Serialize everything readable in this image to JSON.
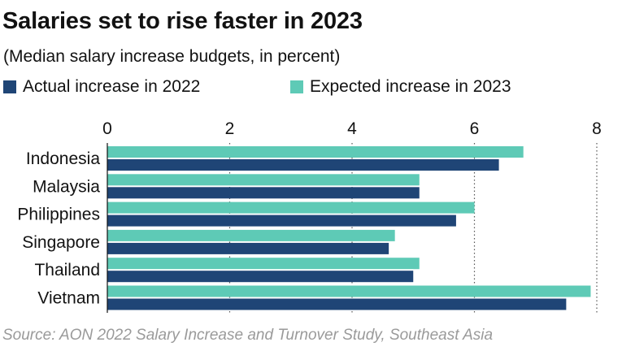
{
  "title": "Salaries set to rise faster in 2023",
  "subtitle": "(Median salary increase budgets, in percent)",
  "source": "Source: AON 2022 Salary Increase and Turnover Study, Southeast Asia",
  "colors": {
    "actual": "#1f4576",
    "expected": "#5ecab6",
    "grid": "#555555",
    "text": "#121212"
  },
  "chart_data": {
    "type": "bar",
    "orientation": "horizontal",
    "categories": [
      "Indonesia",
      "Malaysia",
      "Philippines",
      "Singapore",
      "Thailand",
      "Vietnam"
    ],
    "series": [
      {
        "name": "Expected increase in 2023",
        "key": "expected",
        "values": [
          6.8,
          5.1,
          6.0,
          4.7,
          5.1,
          7.9
        ]
      },
      {
        "name": "Actual increase in 2022",
        "key": "actual",
        "values": [
          6.4,
          5.1,
          5.7,
          4.6,
          5.0,
          7.5
        ]
      }
    ],
    "legend": [
      {
        "name": "Actual increase in 2022",
        "key": "actual"
      },
      {
        "name": "Expected increase in 2023",
        "key": "expected"
      }
    ],
    "xlim": [
      0,
      8
    ],
    "xticks": [
      "0",
      "2",
      "4",
      "6",
      "8"
    ],
    "xtick_values": [
      0,
      2,
      4,
      6,
      8
    ],
    "grid": true,
    "legend_position": "top-left"
  }
}
